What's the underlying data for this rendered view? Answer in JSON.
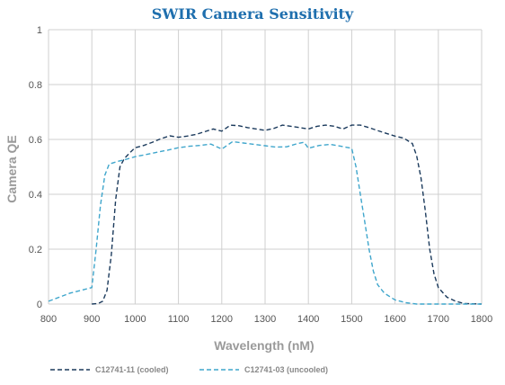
{
  "chart_data": {
    "type": "line",
    "title": "SWIR Camera Sensitivity",
    "xlabel": "Wavelength (nM)",
    "ylabel": "Camera QE",
    "xlim": [
      800,
      1800
    ],
    "ylim": [
      0,
      1
    ],
    "x_ticks": [
      "800",
      "900",
      "1000",
      "1100",
      "1200",
      "1300",
      "1400",
      "1500",
      "1600",
      "1700",
      "1800"
    ],
    "y_ticks": [
      "0",
      "0.2",
      "0.4",
      "0.6",
      "0.8",
      "1"
    ],
    "grid": true,
    "legend_position": "bottom",
    "series": [
      {
        "name": "C12741-11 (cooled)",
        "color": "#1b3a5c",
        "dash": "dashed",
        "points": [
          [
            900,
            0
          ],
          [
            915,
            0.002
          ],
          [
            925,
            0.01
          ],
          [
            935,
            0.05
          ],
          [
            945,
            0.18
          ],
          [
            955,
            0.38
          ],
          [
            965,
            0.5
          ],
          [
            975,
            0.53
          ],
          [
            990,
            0.555
          ],
          [
            1000,
            0.57
          ],
          [
            1020,
            0.578
          ],
          [
            1040,
            0.59
          ],
          [
            1060,
            0.603
          ],
          [
            1080,
            0.613
          ],
          [
            1100,
            0.608
          ],
          [
            1120,
            0.612
          ],
          [
            1140,
            0.618
          ],
          [
            1160,
            0.628
          ],
          [
            1180,
            0.638
          ],
          [
            1200,
            0.63
          ],
          [
            1220,
            0.652
          ],
          [
            1240,
            0.65
          ],
          [
            1260,
            0.643
          ],
          [
            1280,
            0.638
          ],
          [
            1300,
            0.633
          ],
          [
            1320,
            0.64
          ],
          [
            1340,
            0.652
          ],
          [
            1360,
            0.648
          ],
          [
            1380,
            0.643
          ],
          [
            1400,
            0.638
          ],
          [
            1420,
            0.648
          ],
          [
            1440,
            0.652
          ],
          [
            1460,
            0.648
          ],
          [
            1480,
            0.638
          ],
          [
            1500,
            0.652
          ],
          [
            1520,
            0.652
          ],
          [
            1540,
            0.643
          ],
          [
            1560,
            0.632
          ],
          [
            1580,
            0.622
          ],
          [
            1600,
            0.612
          ],
          [
            1620,
            0.605
          ],
          [
            1640,
            0.585
          ],
          [
            1650,
            0.54
          ],
          [
            1660,
            0.46
          ],
          [
            1670,
            0.34
          ],
          [
            1680,
            0.2
          ],
          [
            1690,
            0.11
          ],
          [
            1700,
            0.06
          ],
          [
            1720,
            0.025
          ],
          [
            1740,
            0.01
          ],
          [
            1760,
            0.002
          ],
          [
            1800,
            0
          ]
        ]
      },
      {
        "name": "C12741-03 (uncooled)",
        "color": "#3fa6cc",
        "dash": "dashed",
        "points": [
          [
            800,
            0.01
          ],
          [
            825,
            0.025
          ],
          [
            850,
            0.04
          ],
          [
            875,
            0.05
          ],
          [
            900,
            0.06
          ],
          [
            910,
            0.2
          ],
          [
            920,
            0.36
          ],
          [
            930,
            0.47
          ],
          [
            940,
            0.51
          ],
          [
            960,
            0.52
          ],
          [
            980,
            0.528
          ],
          [
            1000,
            0.537
          ],
          [
            1025,
            0.545
          ],
          [
            1050,
            0.553
          ],
          [
            1075,
            0.561
          ],
          [
            1100,
            0.57
          ],
          [
            1125,
            0.575
          ],
          [
            1150,
            0.578
          ],
          [
            1175,
            0.583
          ],
          [
            1200,
            0.565
          ],
          [
            1225,
            0.592
          ],
          [
            1250,
            0.587
          ],
          [
            1275,
            0.582
          ],
          [
            1300,
            0.577
          ],
          [
            1325,
            0.572
          ],
          [
            1350,
            0.573
          ],
          [
            1375,
            0.585
          ],
          [
            1390,
            0.59
          ],
          [
            1400,
            0.568
          ],
          [
            1425,
            0.578
          ],
          [
            1450,
            0.582
          ],
          [
            1475,
            0.575
          ],
          [
            1500,
            0.568
          ],
          [
            1510,
            0.5
          ],
          [
            1520,
            0.4
          ],
          [
            1530,
            0.3
          ],
          [
            1540,
            0.2
          ],
          [
            1550,
            0.12
          ],
          [
            1560,
            0.07
          ],
          [
            1575,
            0.04
          ],
          [
            1590,
            0.025
          ],
          [
            1600,
            0.015
          ],
          [
            1625,
            0.005
          ],
          [
            1650,
            0
          ],
          [
            1700,
            0
          ],
          [
            1750,
            0
          ],
          [
            1800,
            0
          ]
        ]
      }
    ]
  }
}
